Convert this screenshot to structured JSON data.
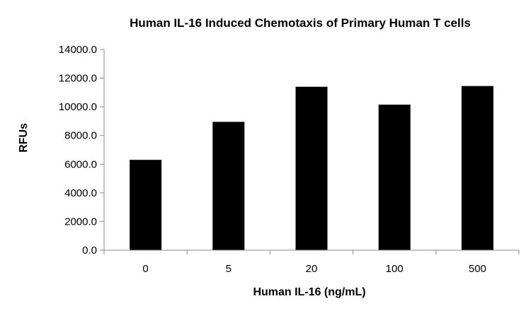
{
  "chart_data": {
    "type": "bar",
    "title": "Human IL-16 Induced Chemotaxis of Primary Human T cells",
    "xlabel": "Human IL-16 (ng/mL)",
    "ylabel": "RFUs",
    "categories": [
      "0",
      "5",
      "20",
      "100",
      "500"
    ],
    "values": [
      6300,
      8950,
      11400,
      10150,
      11450
    ],
    "ylim": [
      0,
      14000
    ],
    "yticks": [
      "0.0",
      "2000.0",
      "4000.0",
      "6000.0",
      "8000.0",
      "10000.0",
      "12000.0",
      "14000.0"
    ],
    "ytick_values": [
      0,
      2000,
      4000,
      6000,
      8000,
      10000,
      12000,
      14000
    ],
    "grid": false,
    "legend": "none",
    "bar_color": "#000000"
  }
}
